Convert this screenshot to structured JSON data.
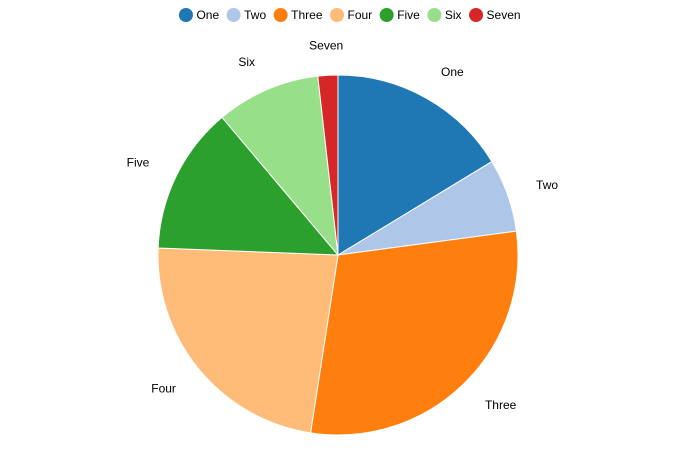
{
  "chart_data": {
    "type": "pie",
    "categories": [
      "One",
      "Two",
      "Three",
      "Four",
      "Five",
      "Six",
      "Seven"
    ],
    "values": [
      16.4,
      6.6,
      29.7,
      23.3,
      13.3,
      9.4,
      1.8
    ],
    "colors": [
      "#1f77b4",
      "#aec7e8",
      "#ff7f0e",
      "#ffbb78",
      "#2ca02c",
      "#98df8a",
      "#d62728"
    ],
    "start_angle": "12 o'clock",
    "direction": "clockwise",
    "legend": {
      "position": "top-center",
      "marker": "circle"
    },
    "title": "",
    "show_slice_labels": true
  }
}
